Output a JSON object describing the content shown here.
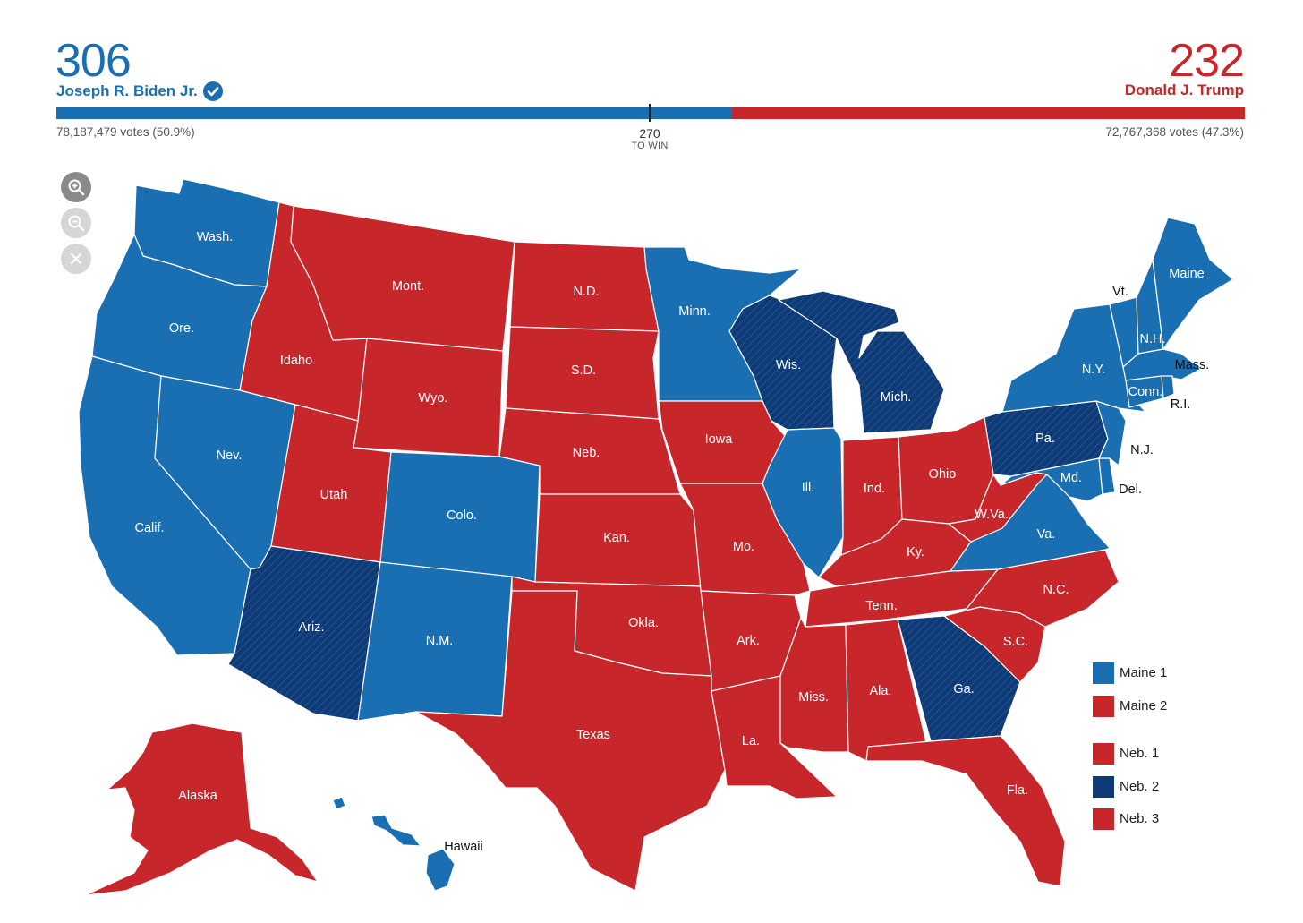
{
  "colors": {
    "dem": "#1a6fb3",
    "rep": "#c7262b",
    "dem_flip": "#0e3a75"
  },
  "header": {
    "dem": {
      "electoral_votes": "306",
      "name": "Joseph R. Biden Jr.",
      "popular": "78,187,479 votes (50.9%)",
      "winner_icon": "check-circle-icon"
    },
    "rep": {
      "electoral_votes": "232",
      "name": "Donald J. Trump",
      "popular": "72,767,368 votes (47.3%)"
    },
    "threshold": {
      "number": "270",
      "label": "TO WIN"
    }
  },
  "map_controls": {
    "zoom_in": "zoom-in-icon",
    "zoom_out": "zoom-out-icon",
    "reset": "close-icon"
  },
  "states": {
    "wa": "Wash.",
    "or": "Ore.",
    "ca": "Calif.",
    "nv": "Nev.",
    "id": "Idaho",
    "mt": "Mont.",
    "wy": "Wyo.",
    "ut": "Utah",
    "co": "Colo.",
    "az": "Ariz.",
    "nm": "N.M.",
    "nd": "N.D.",
    "sd": "S.D.",
    "ne": "Neb.",
    "ks": "Kan.",
    "ok": "Okla.",
    "tx": "Texas",
    "mn": "Minn.",
    "ia": "Iowa",
    "mo": "Mo.",
    "ar": "Ark.",
    "la": "La.",
    "wi": "Wis.",
    "il": "Ill.",
    "mi": "Mich.",
    "in": "Ind.",
    "oh": "Ohio",
    "ky": "Ky.",
    "tn": "Tenn.",
    "ms": "Miss.",
    "al": "Ala.",
    "ga": "Ga.",
    "fl": "Fla.",
    "sc": "S.C.",
    "nc": "N.C.",
    "va": "Va.",
    "wv": "W.Va.",
    "pa": "Pa.",
    "ny": "N.Y.",
    "vt": "Vt.",
    "nh": "N.H.",
    "me": "Maine",
    "ma": "Mass.",
    "ct": "Conn.",
    "ri": "R.I.",
    "nj": "N.J.",
    "de": "Del.",
    "md": "Md.",
    "ak": "Alaska",
    "hi": "Hawaii"
  },
  "legend": [
    {
      "label": "Maine 1",
      "party": "dem"
    },
    {
      "label": "Maine 2",
      "party": "rep"
    },
    {
      "label": "Neb. 1",
      "party": "rep"
    },
    {
      "label": "Neb. 2",
      "party": "dem_flip"
    },
    {
      "label": "Neb. 3",
      "party": "rep"
    }
  ]
}
